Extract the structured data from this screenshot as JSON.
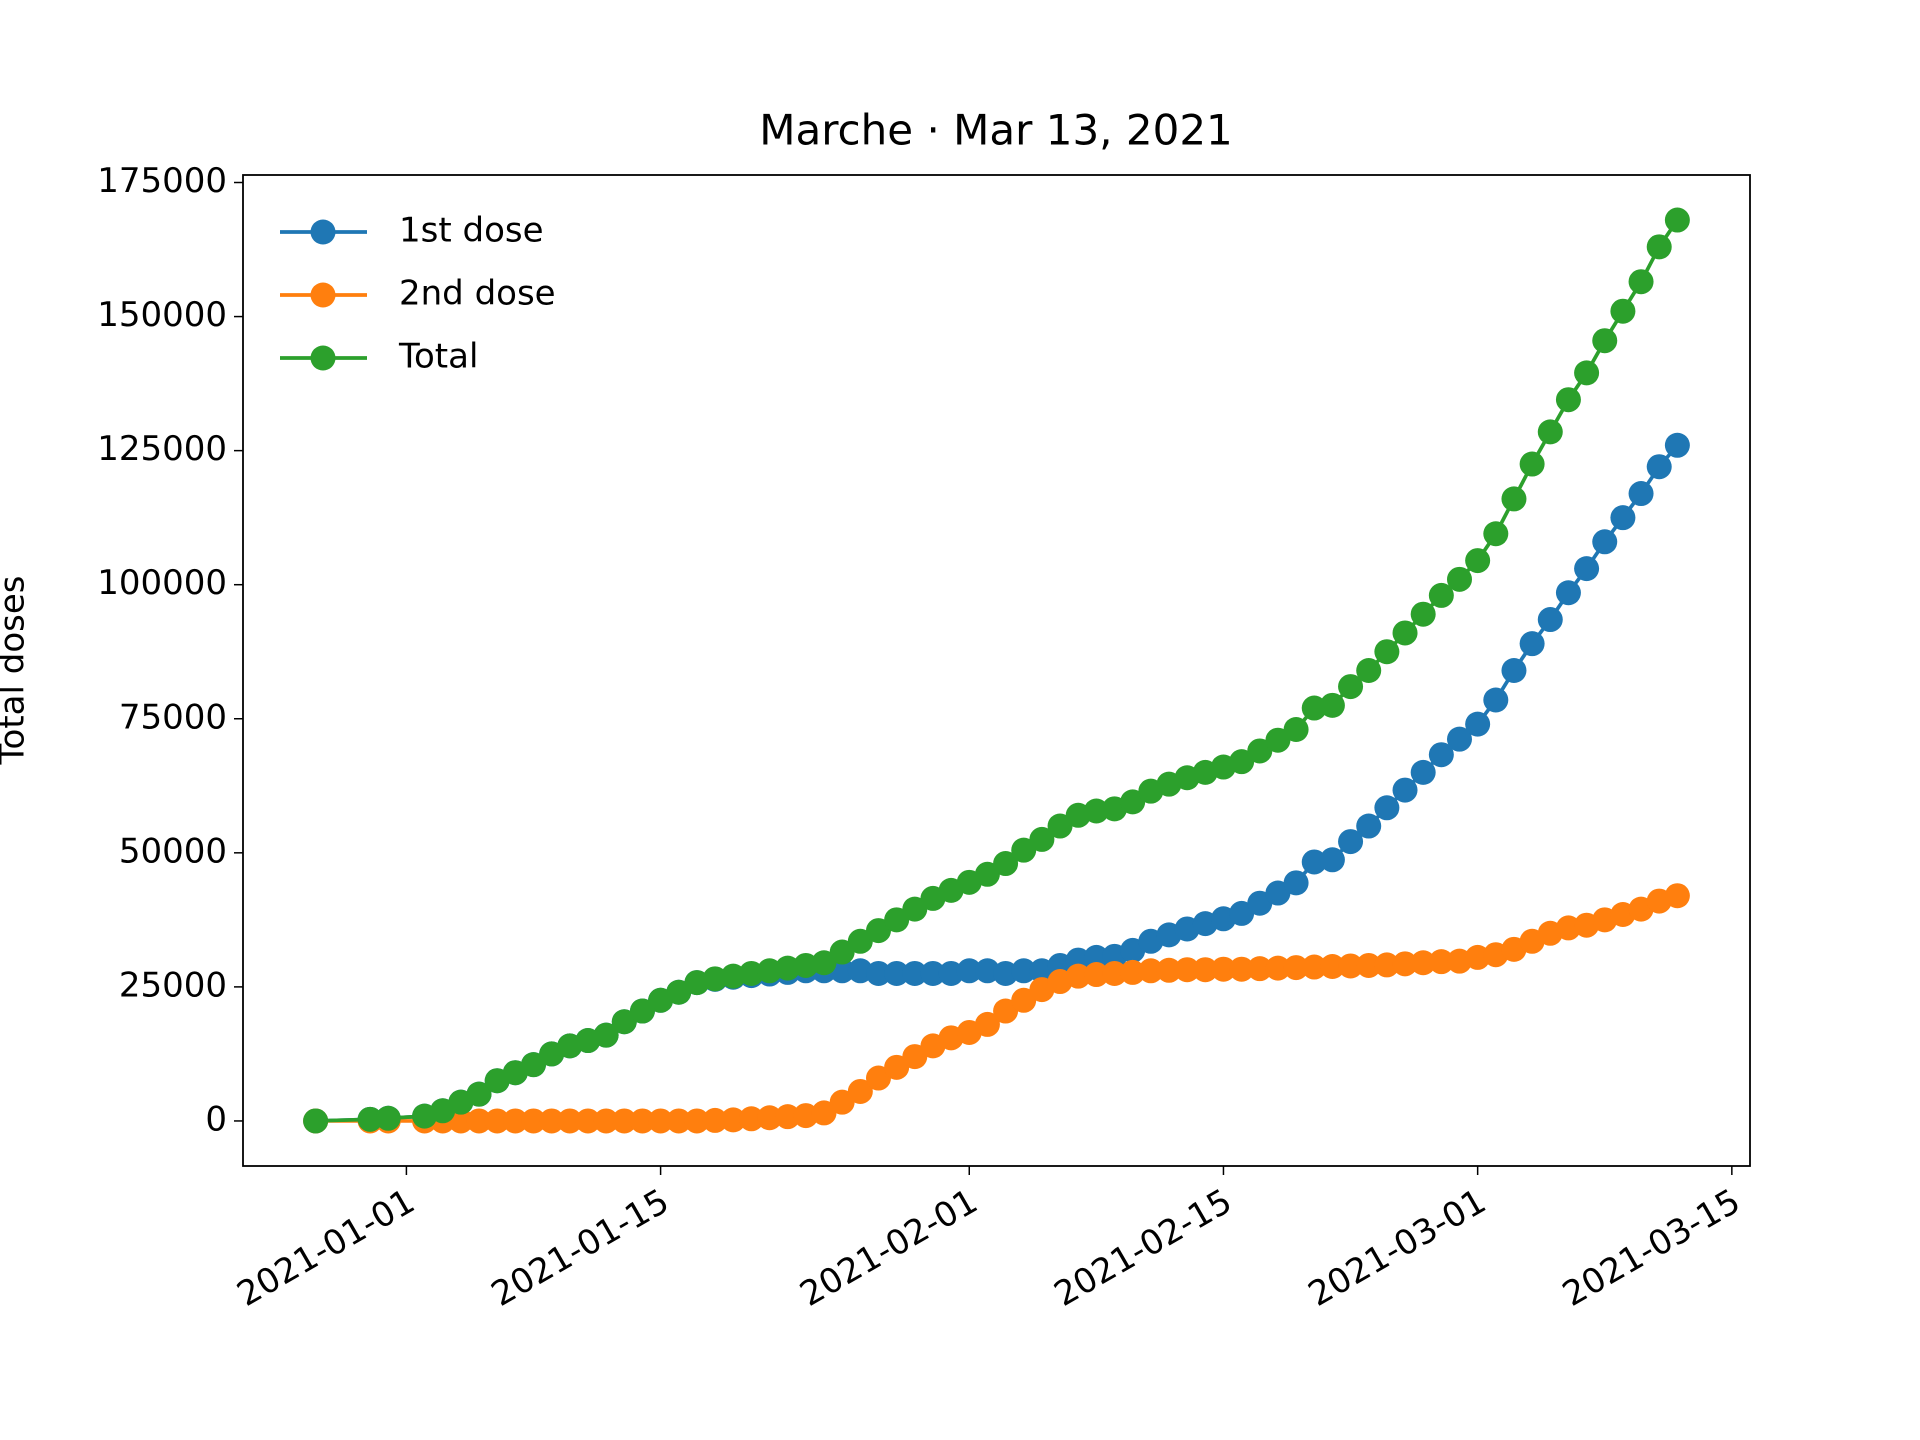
{
  "chart_data": {
    "type": "line",
    "title": "Marche · Mar 13, 2021",
    "y_label": "Total doses",
    "x": [
      "2020-12-27",
      "2020-12-30",
      "2020-12-31",
      "2021-01-02",
      "2021-01-03",
      "2021-01-04",
      "2021-01-05",
      "2021-01-06",
      "2021-01-07",
      "2021-01-08",
      "2021-01-09",
      "2021-01-10",
      "2021-01-11",
      "2021-01-12",
      "2021-01-13",
      "2021-01-14",
      "2021-01-15",
      "2021-01-16",
      "2021-01-17",
      "2021-01-18",
      "2021-01-19",
      "2021-01-20",
      "2021-01-21",
      "2021-01-22",
      "2021-01-23",
      "2021-01-24",
      "2021-01-25",
      "2021-01-26",
      "2021-01-27",
      "2021-01-28",
      "2021-01-29",
      "2021-01-30",
      "2021-01-31",
      "2021-02-01",
      "2021-02-02",
      "2021-02-03",
      "2021-02-04",
      "2021-02-05",
      "2021-02-06",
      "2021-02-07",
      "2021-02-08",
      "2021-02-09",
      "2021-02-10",
      "2021-02-11",
      "2021-02-12",
      "2021-02-13",
      "2021-02-14",
      "2021-02-15",
      "2021-02-16",
      "2021-02-17",
      "2021-02-18",
      "2021-02-19",
      "2021-02-20",
      "2021-02-21",
      "2021-02-22",
      "2021-02-23",
      "2021-02-24",
      "2021-02-25",
      "2021-02-26",
      "2021-02-27",
      "2021-02-28",
      "2021-03-01",
      "2021-03-02",
      "2021-03-03",
      "2021-03-04",
      "2021-03-05",
      "2021-03-06",
      "2021-03-07",
      "2021-03-08",
      "2021-03-09",
      "2021-03-10",
      "2021-03-11",
      "2021-03-12"
    ],
    "series": [
      {
        "name": "1st dose",
        "color": "#1f77b4",
        "values": [
          0,
          300,
          500,
          900,
          1900,
          3500,
          5000,
          7500,
          9000,
          10500,
          12500,
          14000,
          15000,
          16000,
          18500,
          20500,
          22500,
          24000,
          25800,
          26400,
          26800,
          27100,
          27400,
          27700,
          28000,
          28000,
          28000,
          28000,
          27500,
          27500,
          27500,
          27500,
          27500,
          28000,
          28000,
          27500,
          28000,
          28000,
          29000,
          30000,
          30500,
          30700,
          31800,
          33500,
          34700,
          35800,
          36800,
          37700,
          38700,
          40600,
          42500,
          44400,
          48300,
          48700,
          52100,
          55000,
          58400,
          61700,
          65000,
          68300,
          71200,
          74000,
          78500,
          84000,
          89000,
          93500,
          98500,
          103000,
          108000,
          112500,
          117000,
          122000,
          126000
        ]
      },
      {
        "name": "2nd dose",
        "color": "#ff7f0e",
        "values": [
          0,
          0,
          0,
          0,
          0,
          0,
          0,
          0,
          0,
          0,
          0,
          0,
          0,
          0,
          0,
          0,
          0,
          0,
          0,
          100,
          200,
          400,
          600,
          800,
          1000,
          1500,
          3500,
          5500,
          8000,
          10000,
          12000,
          14000,
          15500,
          16500,
          18000,
          20500,
          22500,
          24500,
          26000,
          27000,
          27300,
          27500,
          27700,
          28000,
          28100,
          28200,
          28200,
          28300,
          28300,
          28400,
          28500,
          28600,
          28700,
          28800,
          28900,
          29000,
          29100,
          29300,
          29500,
          29700,
          29800,
          30500,
          31000,
          32000,
          33500,
          35000,
          36000,
          36500,
          37500,
          38500,
          39500,
          41000,
          42000
        ]
      },
      {
        "name": "Total",
        "color": "#2ca02c",
        "values": [
          0,
          300,
          500,
          900,
          1900,
          3500,
          5000,
          7500,
          9000,
          10500,
          12500,
          14000,
          15000,
          16000,
          18500,
          20500,
          22500,
          24000,
          25800,
          26500,
          27000,
          27500,
          28000,
          28500,
          29000,
          29500,
          31500,
          33500,
          35500,
          37500,
          39500,
          41500,
          43000,
          44500,
          46000,
          48000,
          50500,
          52500,
          55000,
          57000,
          57800,
          58200,
          59500,
          61500,
          62800,
          64000,
          65000,
          66000,
          67000,
          69000,
          71000,
          73000,
          77000,
          77500,
          81000,
          84000,
          87500,
          91000,
          94500,
          98000,
          101000,
          104500,
          109500,
          116000,
          122500,
          128500,
          134500,
          139500,
          145500,
          151000,
          156500,
          163000,
          168000
        ]
      }
    ],
    "xlim": [
      "2020-12-23",
      "2021-03-16"
    ],
    "xticks": [
      "2021-01-01",
      "2021-01-15",
      "2021-02-01",
      "2021-02-15",
      "2021-03-01",
      "2021-03-15"
    ],
    "ylim": [
      -8400,
      176400
    ],
    "yticks": [
      0,
      25000,
      50000,
      75000,
      100000,
      125000,
      150000,
      175000
    ],
    "legend": "upper left",
    "grid": false
  }
}
